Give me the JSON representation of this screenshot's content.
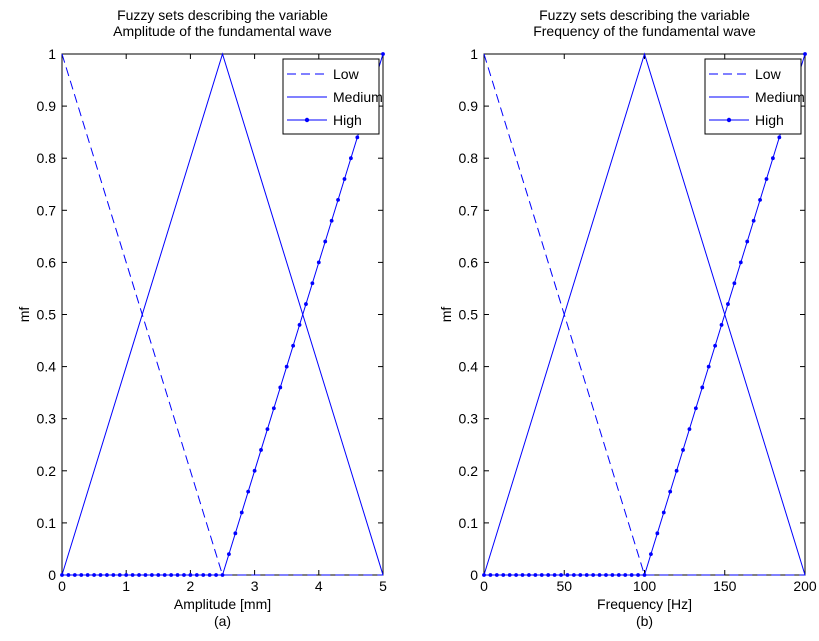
{
  "chart_data": [
    {
      "type": "line",
      "title": "Fuzzy sets describing the variable\nAmplitude of the fundamental wave",
      "xlabel": "Amplitude [mm]",
      "ylabel": "mf",
      "caption": "(a)",
      "xlim": [
        0,
        5
      ],
      "ylim": [
        0,
        1
      ],
      "xticks": [
        0,
        1,
        2,
        3,
        4,
        5
      ],
      "yticks": [
        0,
        0.1,
        0.2,
        0.3,
        0.4,
        0.5,
        0.6,
        0.7,
        0.8,
        0.9,
        1
      ],
      "grid": false,
      "legend_position": "top-right",
      "color": "#0000ff",
      "series": [
        {
          "name": "Low",
          "style": "dashed",
          "x": [
            0,
            2.5,
            5
          ],
          "y": [
            1,
            0,
            0
          ]
        },
        {
          "name": "Medium",
          "style": "solid",
          "x": [
            0,
            2.5,
            5
          ],
          "y": [
            0,
            1,
            0
          ]
        },
        {
          "name": "High",
          "style": "solid-dot",
          "x": [
            0,
            2.5,
            5
          ],
          "y": [
            0,
            0,
            1
          ],
          "marker_count": 51
        }
      ]
    },
    {
      "type": "line",
      "title": "Fuzzy sets describing the variable\nFrequency of the fundamental wave",
      "xlabel": "Frequency [Hz]",
      "ylabel": "mf",
      "caption": "(b)",
      "xlim": [
        0,
        200
      ],
      "ylim": [
        0,
        1
      ],
      "xticks": [
        0,
        50,
        100,
        150,
        200
      ],
      "yticks": [
        0,
        0.1,
        0.2,
        0.3,
        0.4,
        0.5,
        0.6,
        0.7,
        0.8,
        0.9,
        1
      ],
      "grid": false,
      "legend_position": "top-right",
      "color": "#0000ff",
      "series": [
        {
          "name": "Low",
          "style": "dashed",
          "x": [
            0,
            100,
            200
          ],
          "y": [
            1,
            0,
            0
          ]
        },
        {
          "name": "Medium",
          "style": "solid",
          "x": [
            0,
            100,
            200
          ],
          "y": [
            0,
            1,
            0
          ]
        },
        {
          "name": "High",
          "style": "solid-dot",
          "x": [
            0,
            100,
            200
          ],
          "y": [
            0,
            0,
            1
          ],
          "marker_count": 51
        }
      ]
    }
  ]
}
